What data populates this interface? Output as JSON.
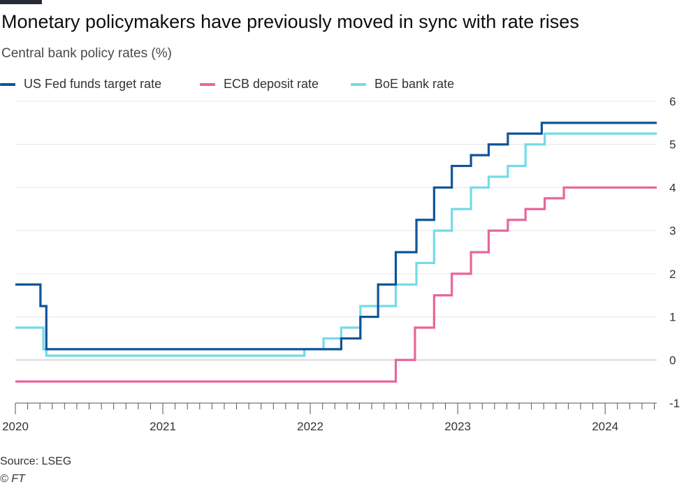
{
  "chart_data": {
    "type": "line",
    "step": true,
    "title": "Monetary policymakers have previously moved in sync with rate rises",
    "subtitle": "Central bank policy rates (%)",
    "xlabel": "",
    "ylabel": "",
    "xlim": [
      2020.0,
      2024.35
    ],
    "ylim": [
      -1,
      6
    ],
    "y_ticks": [
      -1,
      0,
      1,
      2,
      3,
      4,
      5,
      6
    ],
    "x_ticks": [
      2020,
      2021,
      2022,
      2023,
      2024
    ],
    "x_tick_labels": [
      "2020",
      "2021",
      "2022",
      "2023",
      "2024"
    ],
    "grid": true,
    "legend_position": "top-left",
    "series": [
      {
        "name": "US Fed funds target rate",
        "color": "#0f5499",
        "x": [
          2020.0,
          2020.17,
          2020.21,
          2022.21,
          2022.34,
          2022.46,
          2022.58,
          2022.72,
          2022.84,
          2022.96,
          2023.09,
          2023.21,
          2023.34,
          2023.57,
          2024.35
        ],
        "y": [
          1.75,
          1.25,
          0.25,
          0.5,
          1.0,
          1.75,
          2.5,
          3.25,
          4.0,
          4.5,
          4.75,
          5.0,
          5.25,
          5.5,
          5.5
        ]
      },
      {
        "name": "ECB deposit rate",
        "color": "#e9659a",
        "x": [
          2020.0,
          2022.58,
          2022.71,
          2022.84,
          2022.96,
          2023.09,
          2023.21,
          2023.34,
          2023.46,
          2023.59,
          2023.72,
          2024.35
        ],
        "y": [
          -0.5,
          0.0,
          0.75,
          1.5,
          2.0,
          2.5,
          3.0,
          3.25,
          3.5,
          3.75,
          4.0,
          4.0
        ]
      },
      {
        "name": "BoE bank rate",
        "color": "#73dbe8",
        "x": [
          2020.0,
          2020.19,
          2020.21,
          2021.96,
          2022.09,
          2022.21,
          2022.34,
          2022.58,
          2022.72,
          2022.84,
          2022.96,
          2023.09,
          2023.21,
          2023.34,
          2023.46,
          2023.59,
          2024.35
        ],
        "y": [
          0.75,
          0.25,
          0.1,
          0.25,
          0.5,
          0.75,
          1.25,
          1.75,
          2.25,
          3.0,
          3.5,
          4.0,
          4.25,
          4.5,
          5.0,
          5.25,
          5.25
        ]
      }
    ]
  },
  "legend": [
    {
      "label": "US Fed funds target rate",
      "color": "#0f5499"
    },
    {
      "label": "ECB deposit rate",
      "color": "#e9659a"
    },
    {
      "label": "BoE bank rate",
      "color": "#73dbe8"
    }
  ],
  "footer": {
    "source": "Source: LSEG",
    "copyright": "© FT"
  }
}
